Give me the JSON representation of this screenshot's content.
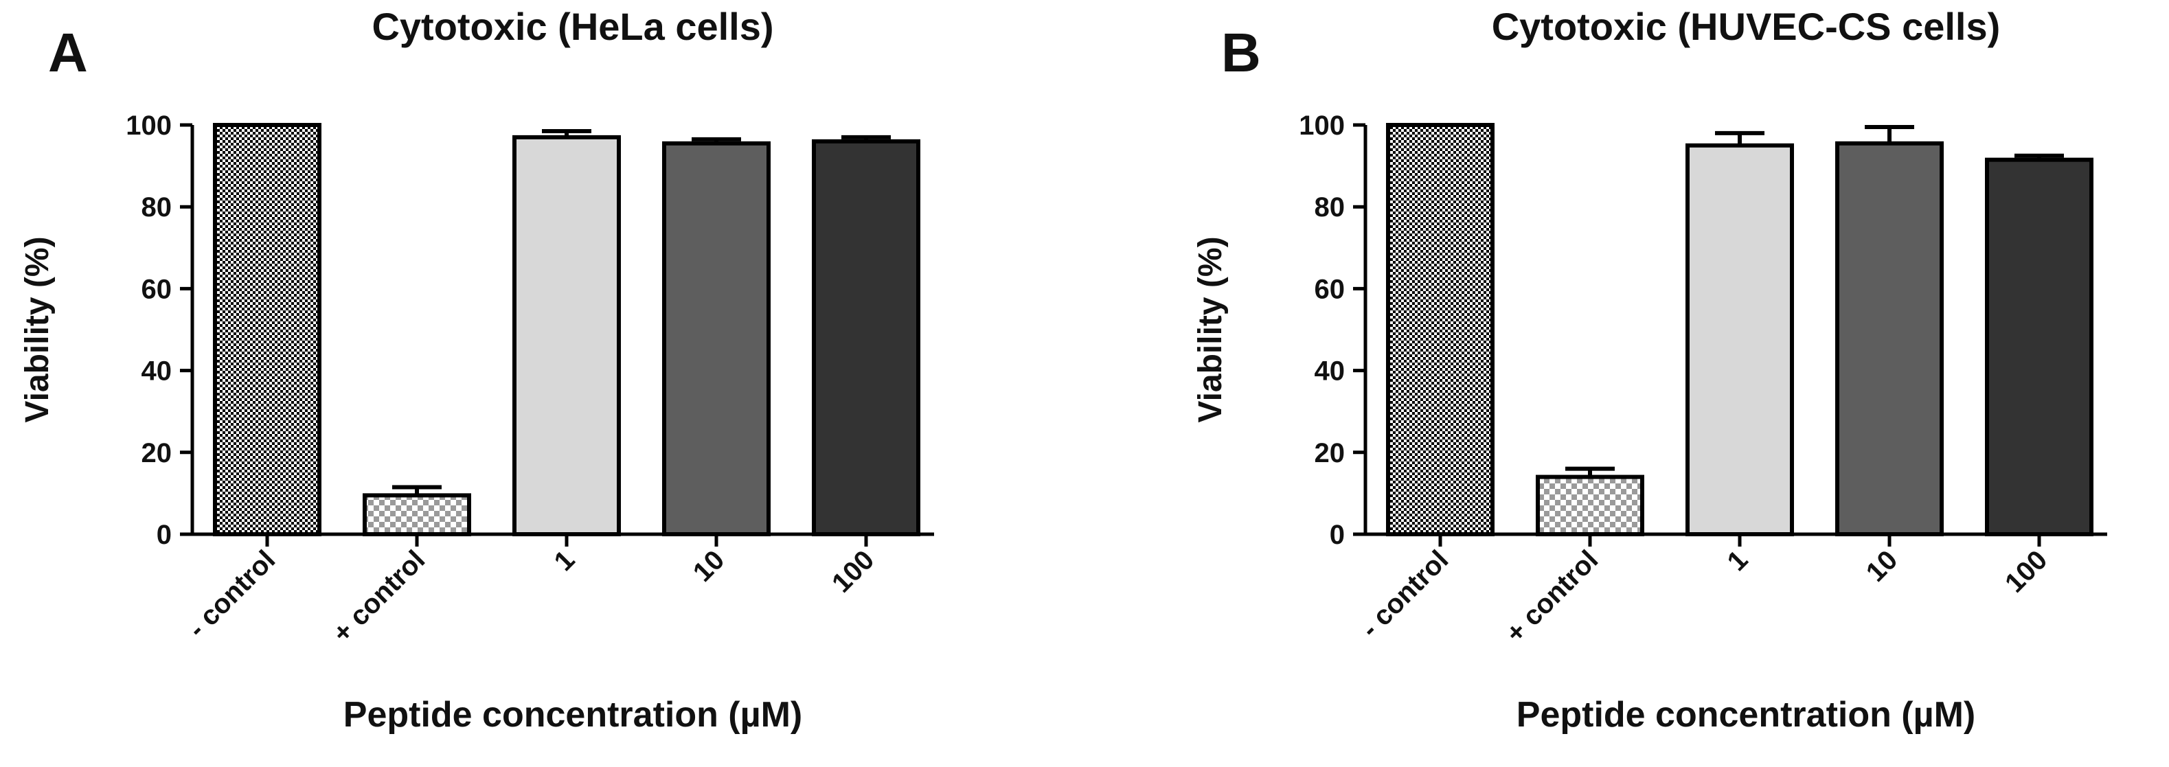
{
  "chart_data": [
    {
      "type": "bar",
      "panel_label": "A",
      "title": "Cytotoxic (HeLa cells)",
      "y_label": "Viability (%)",
      "x_label": "Peptide concentration (µM)",
      "categories": [
        "- control",
        "+ control",
        "1",
        "10",
        "100"
      ],
      "values": [
        100,
        9.5,
        97,
        95.5,
        96
      ],
      "errors": [
        0,
        2,
        1.5,
        1,
        1
      ],
      "colors": [
        "#000000",
        "#9a9a9a",
        "#d8d8d8",
        "#5e5e5e",
        "#333333"
      ],
      "patterns": [
        "fine-checker",
        "coarse-checker",
        null,
        null,
        null
      ],
      "ylim": [
        0,
        100
      ],
      "yticks": [
        0,
        20,
        40,
        60,
        80,
        100
      ]
    },
    {
      "type": "bar",
      "panel_label": "B",
      "title": "Cytotoxic (HUVEC-CS cells)",
      "y_label": "Viability (%)",
      "x_label": "Peptide concentration (µM)",
      "categories": [
        "- control",
        "+ control",
        "1",
        "10",
        "100"
      ],
      "values": [
        100,
        14,
        95,
        95.5,
        91.5
      ],
      "errors": [
        0,
        2,
        3,
        4,
        1
      ],
      "colors": [
        "#000000",
        "#9a9a9a",
        "#d8d8d8",
        "#5e5e5e",
        "#333333"
      ],
      "patterns": [
        "fine-checker",
        "coarse-checker",
        null,
        null,
        null
      ],
      "ylim": [
        0,
        100
      ],
      "yticks": [
        0,
        20,
        40,
        60,
        80,
        100
      ]
    }
  ]
}
